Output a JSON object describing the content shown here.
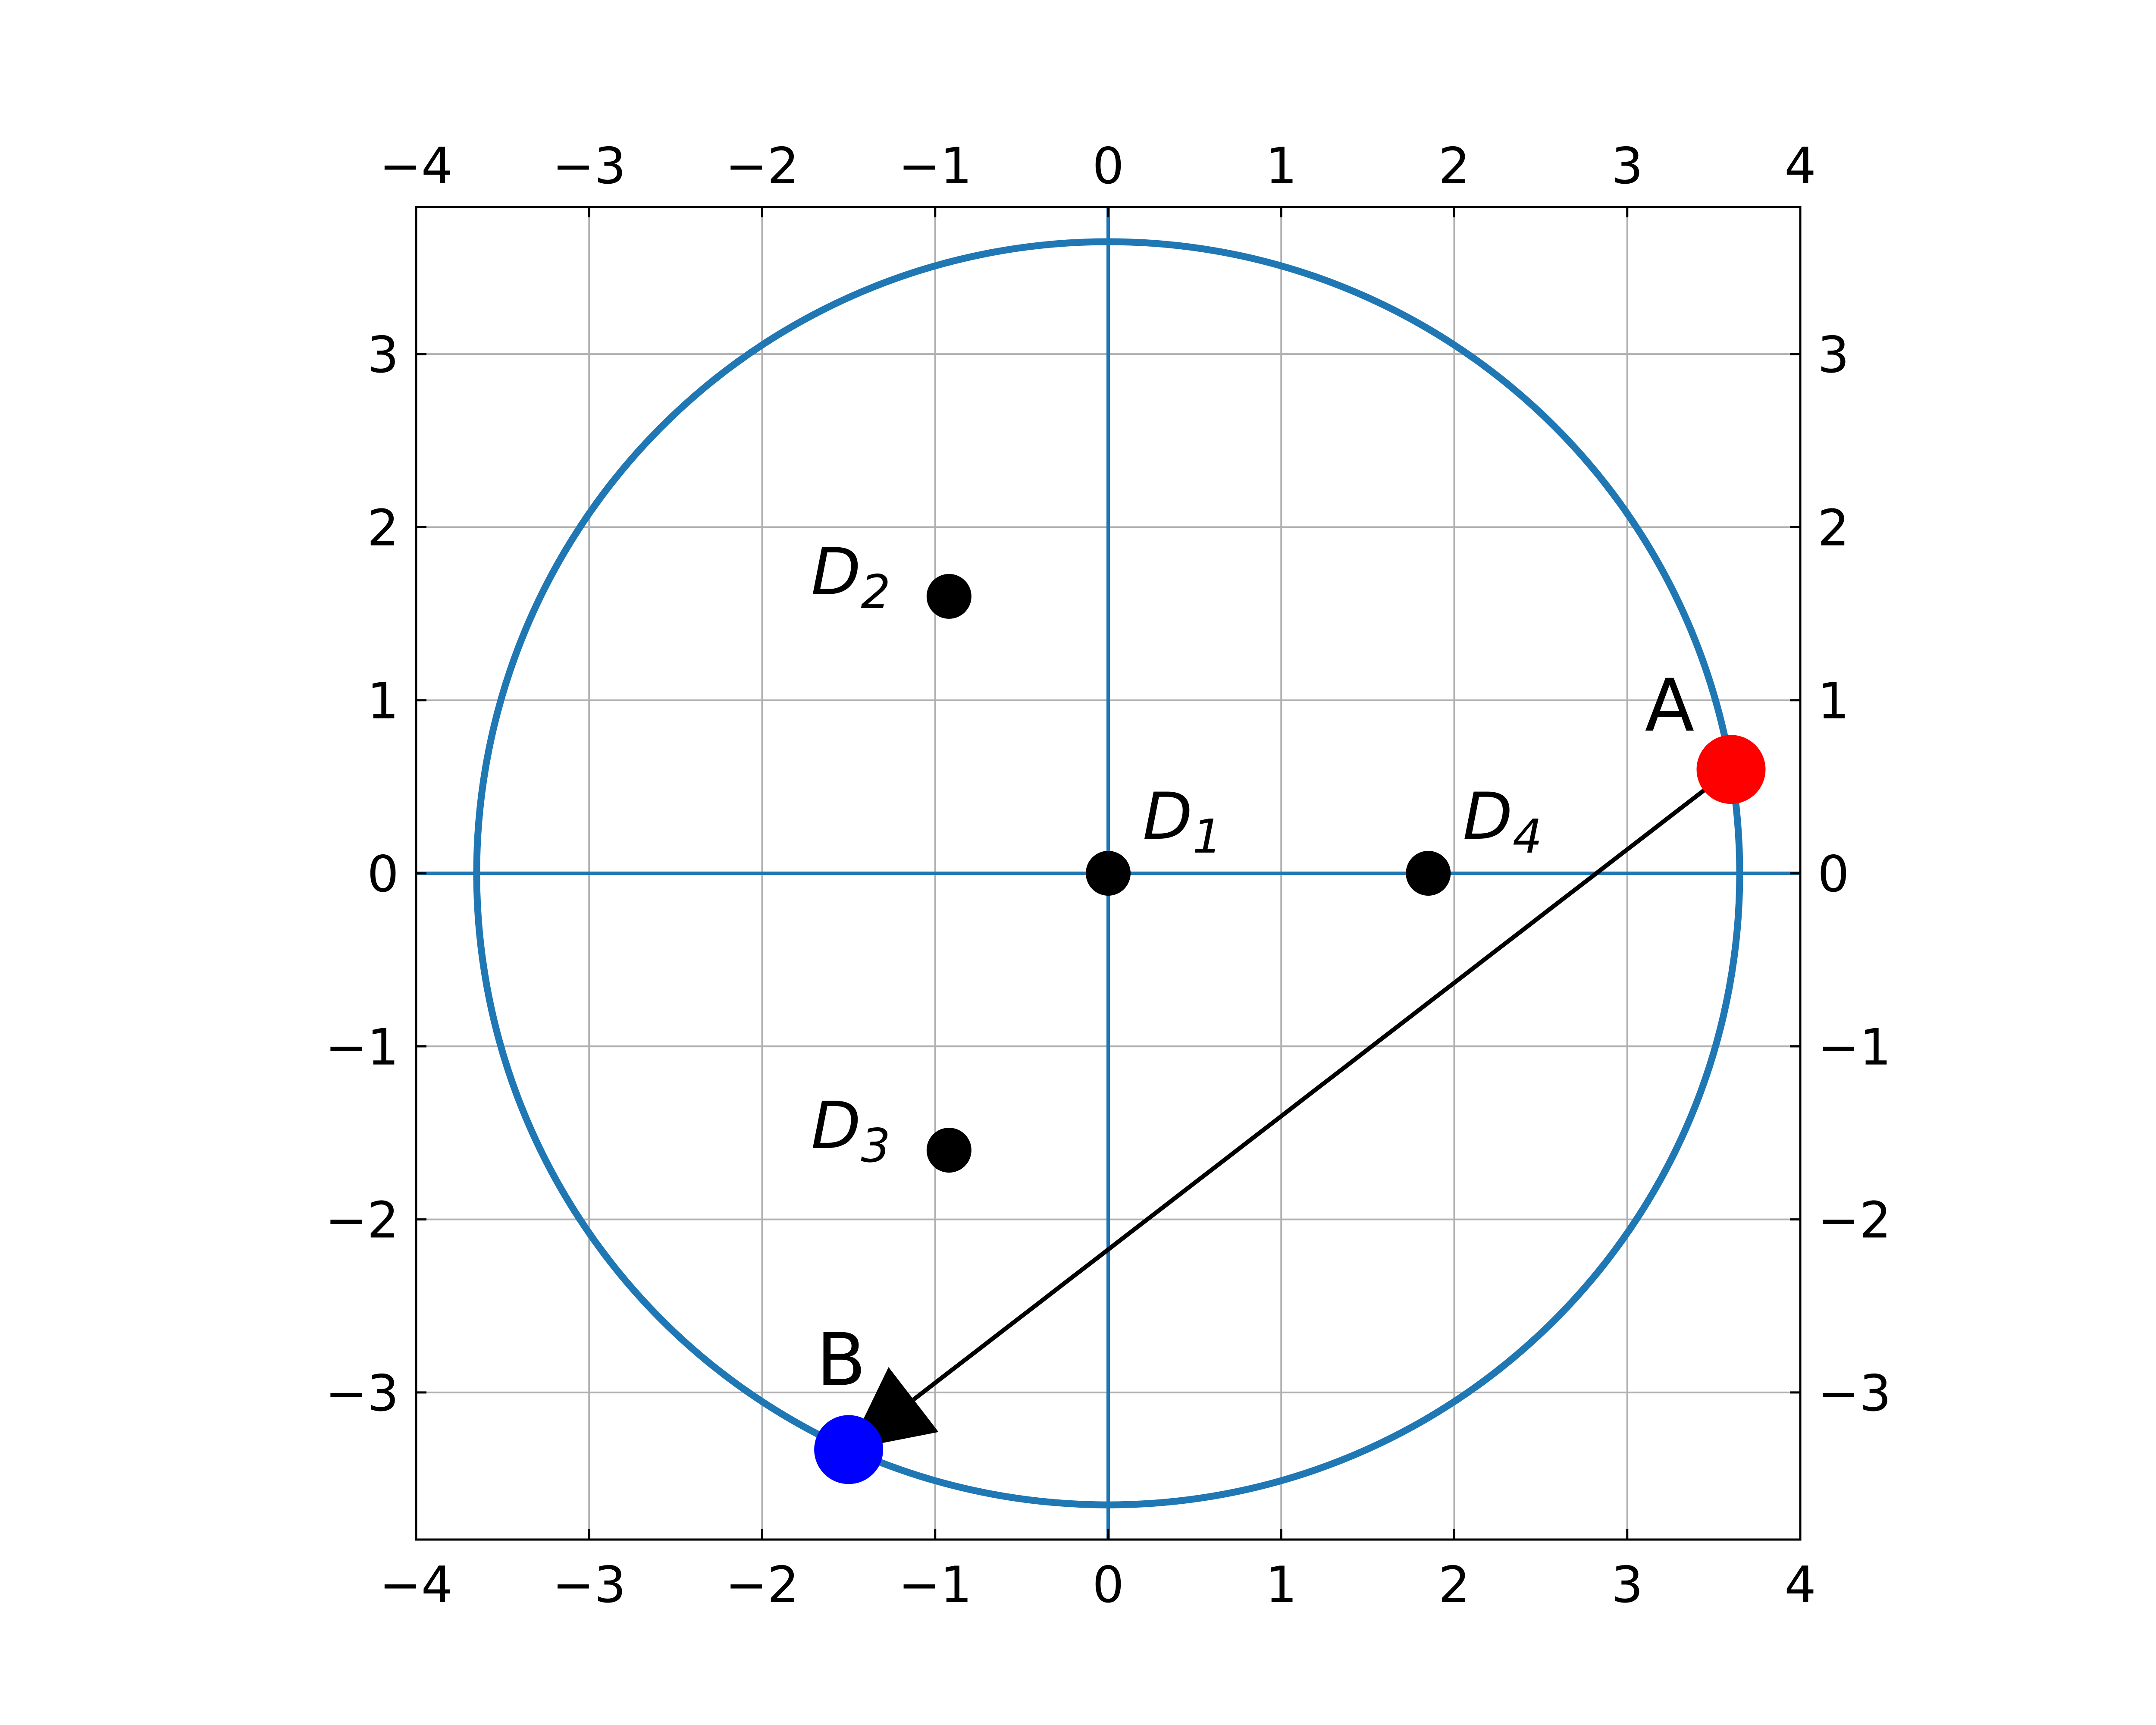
{
  "chart_data": {
    "type": "scatter",
    "title": "",
    "xlabel": "",
    "ylabel": "",
    "xlim": [
      -4,
      4
    ],
    "ylim": [
      -3.85,
      3.85
    ],
    "x_ticks": [
      -4,
      -3,
      -2,
      -1,
      0,
      1,
      2,
      3,
      4
    ],
    "y_ticks": [
      -3,
      -2,
      -1,
      0,
      1,
      2,
      3
    ],
    "x_tick_labels": [
      "−4",
      "−3",
      "−2",
      "−1",
      "0",
      "1",
      "2",
      "3",
      "4"
    ],
    "y_tick_labels": [
      "−3",
      "−2",
      "−1",
      "0",
      "1",
      "2",
      "3"
    ],
    "tick_labels_on": [
      "bottom",
      "top",
      "left",
      "right"
    ],
    "grid": true,
    "axis_lines": {
      "x": 0,
      "y": 0,
      "color": "#1f77b4"
    },
    "circle": {
      "center": [
        0,
        0
      ],
      "radius": 3.65,
      "color": "#1f77b4"
    },
    "points": [
      {
        "base": "D",
        "sub": "1",
        "x": 0,
        "y": 0,
        "color": "#000000",
        "label_pos": "upper-right"
      },
      {
        "base": "D",
        "sub": "2",
        "x": -0.92,
        "y": 1.6,
        "color": "#000000",
        "label_pos": "left"
      },
      {
        "base": "D",
        "sub": "3",
        "x": -0.92,
        "y": -1.6,
        "color": "#000000",
        "label_pos": "left"
      },
      {
        "base": "D",
        "sub": "4",
        "x": 1.85,
        "y": 0,
        "color": "#000000",
        "label_pos": "upper-right"
      }
    ],
    "markers": [
      {
        "label": "A",
        "x": 3.6,
        "y": 0.6,
        "color": "#ff0000",
        "label_pos": "upper-left"
      },
      {
        "label": "B",
        "x": -1.5,
        "y": -3.33,
        "color": "#0000ff",
        "label_pos": "above"
      }
    ],
    "arrow": {
      "from": [
        3.6,
        0.6
      ],
      "to": [
        -1.5,
        -3.33
      ],
      "color": "#000000"
    }
  }
}
